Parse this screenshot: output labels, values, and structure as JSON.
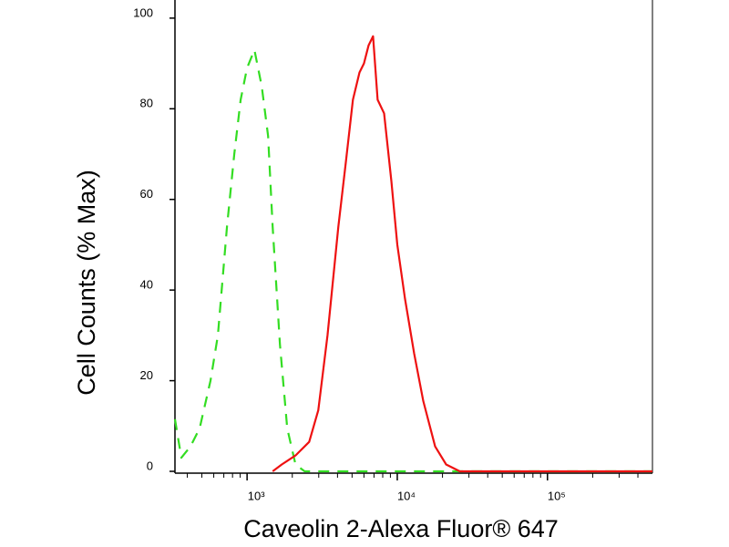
{
  "chart_data": {
    "type": "line",
    "xlabel": "Caveolin 2-Alexa Fluor® 647",
    "ylabel": "Cell Counts (% Max)",
    "xscale": "log",
    "xlim": [
      331,
      500000
    ],
    "ylim": [
      0,
      104
    ],
    "xticks": [
      {
        "value": 1000,
        "label": "10³"
      },
      {
        "value": 10000,
        "label": "10⁴"
      },
      {
        "value": 100000,
        "label": "10⁵"
      }
    ],
    "xminorticks": [
      400,
      500,
      600,
      700,
      800,
      900,
      2000,
      3000,
      4000,
      5000,
      6000,
      7000,
      8000,
      9000,
      20000,
      30000,
      40000,
      50000,
      60000,
      70000,
      80000,
      90000,
      200000,
      300000,
      400000
    ],
    "yticks": [
      0,
      20,
      40,
      60,
      80,
      100
    ],
    "series": [
      {
        "color": "#33dd22",
        "dashed": true,
        "x": [
          331,
          365,
          420,
          483,
          571,
          639,
          735,
          822,
          906,
          1000,
          1119,
          1251,
          1380,
          1480,
          1655,
          1851,
          2100,
          2415,
          24300,
          500000
        ],
        "values": [
          11.5,
          3,
          5.5,
          9.5,
          20,
          30,
          54,
          70,
          82,
          89,
          93,
          85,
          74,
          54,
          28,
          9.5,
          1.5,
          0,
          0,
          0
        ]
      },
      {
        "color": "#ee1111",
        "dashed": false,
        "x": [
          1480,
          1702,
          2100,
          2590,
          2980,
          3430,
          4050,
          4540,
          5070,
          5600,
          6000,
          6440,
          6900,
          7400,
          8170,
          9130,
          10000,
          11270,
          12950,
          14890,
          17860,
          21140,
          26100,
          500000
        ],
        "values": [
          0,
          1.5,
          3.5,
          6.5,
          13.5,
          30,
          54,
          68,
          82,
          88,
          90,
          94,
          96,
          82,
          79,
          64,
          50,
          38,
          26,
          15.5,
          5.5,
          1.5,
          0,
          0
        ]
      }
    ]
  }
}
